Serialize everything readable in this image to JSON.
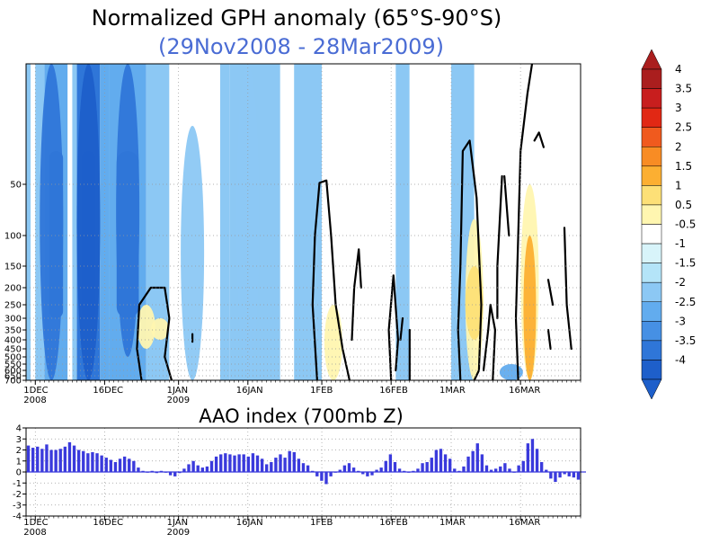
{
  "chart_data": [
    {
      "type": "heatmap",
      "title": "Normalized GPH anomaly (65°S-90°S)",
      "subtitle": "(29Nov2008 - 28Mar2009)",
      "x_range_days": [
        0,
        120
      ],
      "x_ticks": [
        {
          "day": 2,
          "label": "1DEC",
          "sub": "2008"
        },
        {
          "day": 17,
          "label": "16DEC",
          "sub": ""
        },
        {
          "day": 33,
          "label": "1JAN",
          "sub": "2009"
        },
        {
          "day": 48,
          "label": "16JAN",
          "sub": ""
        },
        {
          "day": 64,
          "label": "1FEB",
          "sub": ""
        },
        {
          "day": 79,
          "label": "16FEB",
          "sub": ""
        },
        {
          "day": 92,
          "label": "1MAR",
          "sub": ""
        },
        {
          "day": 107,
          "label": "16MAR",
          "sub": ""
        }
      ],
      "y_levels_hPa": [
        1,
        10,
        50,
        100,
        150,
        200,
        250,
        300,
        350,
        400,
        450,
        500,
        550,
        600,
        650,
        700
      ],
      "y_tick_labels": [
        "50",
        "100",
        "150",
        "200",
        "250",
        "300",
        "350",
        "400",
        "450",
        "500",
        "550",
        "600",
        "650",
        "700"
      ],
      "colorbar": {
        "labels": [
          "4",
          "3.5",
          "3",
          "2.5",
          "2",
          "1.5",
          "1",
          "0.5",
          "-0.5",
          "-1",
          "-1.5",
          "-2",
          "-2.5",
          "-3",
          "-3.5",
          "-4"
        ],
        "colors": [
          "#aa1e1e",
          "#c81e1e",
          "#e12814",
          "#f05a1e",
          "#f88c24",
          "#fcaf32",
          "#fde077",
          "#fff6b0",
          "#ffffff",
          "#d8f4fa",
          "#b4e4f8",
          "#8cc8f4",
          "#62acee",
          "#4690e4",
          "#2f76d8",
          "#1e5fca"
        ]
      },
      "columns": [
        {
          "d0": 0,
          "d1": 1,
          "b": -1
        },
        {
          "d0": 1,
          "d1": 2,
          "b": 0
        },
        {
          "d0": 2,
          "d1": 4,
          "b": -1
        },
        {
          "d0": 4,
          "d1": 9,
          "b": -2,
          "core": -3
        },
        {
          "d0": 9,
          "d1": 10,
          "b": 0
        },
        {
          "d0": 10,
          "d1": 11,
          "b": -1
        },
        {
          "d0": 11,
          "d1": 16,
          "b": -3,
          "core": -4
        },
        {
          "d0": 16,
          "d1": 18,
          "b": -2
        },
        {
          "d0": 18,
          "d1": 26,
          "b": -2,
          "core": -3
        },
        {
          "d0": 26,
          "d1": 31,
          "b": -1
        },
        {
          "d0": 31,
          "d1": 41,
          "b": 0
        },
        {
          "d0": 41,
          "d1": 42,
          "b": 0
        },
        {
          "d0": 42,
          "d1": 44,
          "b": -1
        },
        {
          "d0": 44,
          "d1": 55,
          "b": -1
        },
        {
          "d0": 55,
          "d1": 58,
          "b": 0
        },
        {
          "d0": 58,
          "d1": 64,
          "b": -1
        },
        {
          "d0": 64,
          "d1": 80,
          "b": 0
        },
        {
          "d0": 80,
          "d1": 83,
          "b": -1
        },
        {
          "d0": 83,
          "d1": 92,
          "b": 0
        },
        {
          "d0": 92,
          "d1": 97,
          "b": -1
        },
        {
          "d0": 97,
          "d1": 105,
          "b": 0
        },
        {
          "d0": 105,
          "d1": 110,
          "b": 0
        },
        {
          "d0": 110,
          "d1": 120,
          "b": 0
        }
      ],
      "blobs": [
        {
          "day": 5.5,
          "top": 1,
          "bottom": 700,
          "level": -3
        },
        {
          "day": 13.5,
          "top": 1,
          "bottom": 700,
          "level": -4
        },
        {
          "day": 22,
          "top": 1,
          "bottom": 500,
          "level": -3
        },
        {
          "day": 36,
          "top": 10,
          "bottom": 700,
          "level": -1
        },
        {
          "day": 48,
          "top": 1,
          "bottom": 650,
          "level": -1
        },
        {
          "day": 26,
          "top": 250,
          "bottom": 450,
          "level": 1
        },
        {
          "day": 29,
          "top": 300,
          "bottom": 400,
          "level": 1
        },
        {
          "day": 66.5,
          "top": 250,
          "bottom": 700,
          "level": 1
        },
        {
          "day": 97,
          "top": 80,
          "bottom": 700,
          "level": 1
        },
        {
          "day": 97,
          "top": 150,
          "bottom": 400,
          "level": 2
        },
        {
          "day": 109,
          "top": 50,
          "bottom": 700,
          "level": 1
        },
        {
          "day": 109,
          "top": 100,
          "bottom": 700,
          "level": 3
        },
        {
          "day": 105,
          "top": 550,
          "bottom": 700,
          "level": -2
        }
      ],
      "contours": [
        [
          [
            25,
            700
          ],
          [
            24,
            450
          ],
          [
            24.5,
            250
          ],
          [
            27,
            200
          ],
          [
            30,
            200
          ],
          [
            31,
            300
          ],
          [
            30,
            500
          ],
          [
            31.5,
            700
          ]
        ],
        [
          [
            36,
            370
          ],
          [
            36,
            410
          ]
        ],
        [
          [
            63,
            700
          ],
          [
            62,
            250
          ],
          [
            62.5,
            100
          ],
          [
            63.5,
            48
          ],
          [
            65,
            45
          ],
          [
            66,
            100
          ],
          [
            67,
            250
          ],
          [
            68.5,
            450
          ],
          [
            70,
            700
          ]
        ],
        [
          [
            70.5,
            400
          ],
          [
            71,
            200
          ],
          [
            72,
            120
          ],
          [
            72.5,
            200
          ]
        ],
        [
          [
            79,
            700
          ],
          [
            78.5,
            350
          ],
          [
            79.5,
            170
          ],
          [
            80.5,
            400
          ],
          [
            80,
            600
          ]
        ],
        [
          [
            81,
            400
          ],
          [
            81.5,
            300
          ]
        ],
        [
          [
            83,
            350
          ],
          [
            83,
            700
          ]
        ],
        [
          [
            94,
            700
          ],
          [
            93.5,
            350
          ],
          [
            94,
            150
          ],
          [
            94.5,
            20
          ],
          [
            96,
            15
          ],
          [
            97.5,
            60
          ],
          [
            98.5,
            250
          ],
          [
            98,
            600
          ],
          [
            97,
            700
          ]
        ],
        [
          [
            99,
            600
          ],
          [
            100,
            350
          ],
          [
            100.5,
            250
          ],
          [
            101.5,
            350
          ],
          [
            101,
            700
          ]
        ],
        [
          [
            102,
            300
          ],
          [
            102,
            150
          ],
          [
            103,
            40
          ]
        ],
        [
          [
            103.5,
            40
          ],
          [
            104.5,
            100
          ]
        ],
        [
          [
            106.5,
            700
          ],
          [
            106,
            300
          ],
          [
            106.5,
            100
          ],
          [
            107,
            20
          ],
          [
            108.5,
            3
          ],
          [
            109.5,
            1
          ]
        ],
        [
          [
            110,
            15
          ],
          [
            111,
            12
          ],
          [
            112,
            18
          ]
        ],
        [
          [
            113,
            180
          ],
          [
            114,
            250
          ]
        ],
        [
          [
            113.5,
            450
          ],
          [
            113,
            350
          ]
        ],
        [
          [
            116.5,
            90
          ],
          [
            117,
            250
          ],
          [
            118,
            450
          ]
        ]
      ]
    },
    {
      "type": "bar",
      "title": "AAO index (700mb Z)",
      "x_range_days": [
        0,
        120
      ],
      "ylim": [
        -4,
        4
      ],
      "y_ticks": [
        "4",
        "3",
        "2",
        "1",
        "0",
        "-1",
        "-2",
        "-3",
        "-4"
      ],
      "x_ticks": [
        {
          "day": 2,
          "label": "1DEC",
          "sub": "2008"
        },
        {
          "day": 17,
          "label": "16DEC",
          "sub": ""
        },
        {
          "day": 33,
          "label": "1JAN",
          "sub": "2009"
        },
        {
          "day": 48,
          "label": "16JAN",
          "sub": ""
        },
        {
          "day": 64,
          "label": "1FEB",
          "sub": ""
        },
        {
          "day": 79,
          "label": "16FEB",
          "sub": ""
        },
        {
          "day": 92,
          "label": "1MAR",
          "sub": ""
        },
        {
          "day": 107,
          "label": "16MAR",
          "sub": ""
        }
      ],
      "bar_color": "#3a3adc",
      "values": [
        2.4,
        2.2,
        2.3,
        2.1,
        2.5,
        2.0,
        2.0,
        2.1,
        2.3,
        2.7,
        2.4,
        2.0,
        1.9,
        1.7,
        1.8,
        1.7,
        1.5,
        1.3,
        1.1,
        0.9,
        1.2,
        1.4,
        1.2,
        1.0,
        0.4,
        0.1,
        0.0,
        0.1,
        -0.1,
        0.1,
        0.0,
        -0.3,
        -0.4,
        -0.1,
        0.3,
        0.7,
        1.0,
        0.6,
        0.4,
        0.5,
        1.0,
        1.4,
        1.6,
        1.7,
        1.6,
        1.5,
        1.6,
        1.6,
        1.4,
        1.7,
        1.5,
        1.2,
        0.7,
        0.9,
        1.3,
        1.6,
        1.3,
        1.9,
        1.8,
        1.2,
        0.8,
        0.6,
        0.1,
        -0.4,
        -0.8,
        -1.1,
        -0.4,
        0.0,
        0.2,
        0.6,
        0.8,
        0.4,
        0.1,
        -0.2,
        -0.4,
        -0.3,
        0.2,
        0.4,
        1.0,
        1.6,
        0.9,
        0.3,
        0.1,
        0.0,
        0.1,
        0.3,
        0.8,
        0.9,
        1.3,
        2.0,
        2.1,
        1.6,
        1.2,
        0.3,
        0.1,
        0.5,
        1.4,
        1.9,
        2.6,
        1.6,
        0.6,
        0.2,
        0.3,
        0.5,
        0.8,
        0.3,
        0.0,
        0.6,
        1.0,
        2.6,
        3.0,
        2.1,
        0.9,
        0.2,
        -0.6,
        -0.9,
        -0.5,
        -0.2,
        -0.4,
        -0.5,
        -0.7
      ]
    }
  ]
}
